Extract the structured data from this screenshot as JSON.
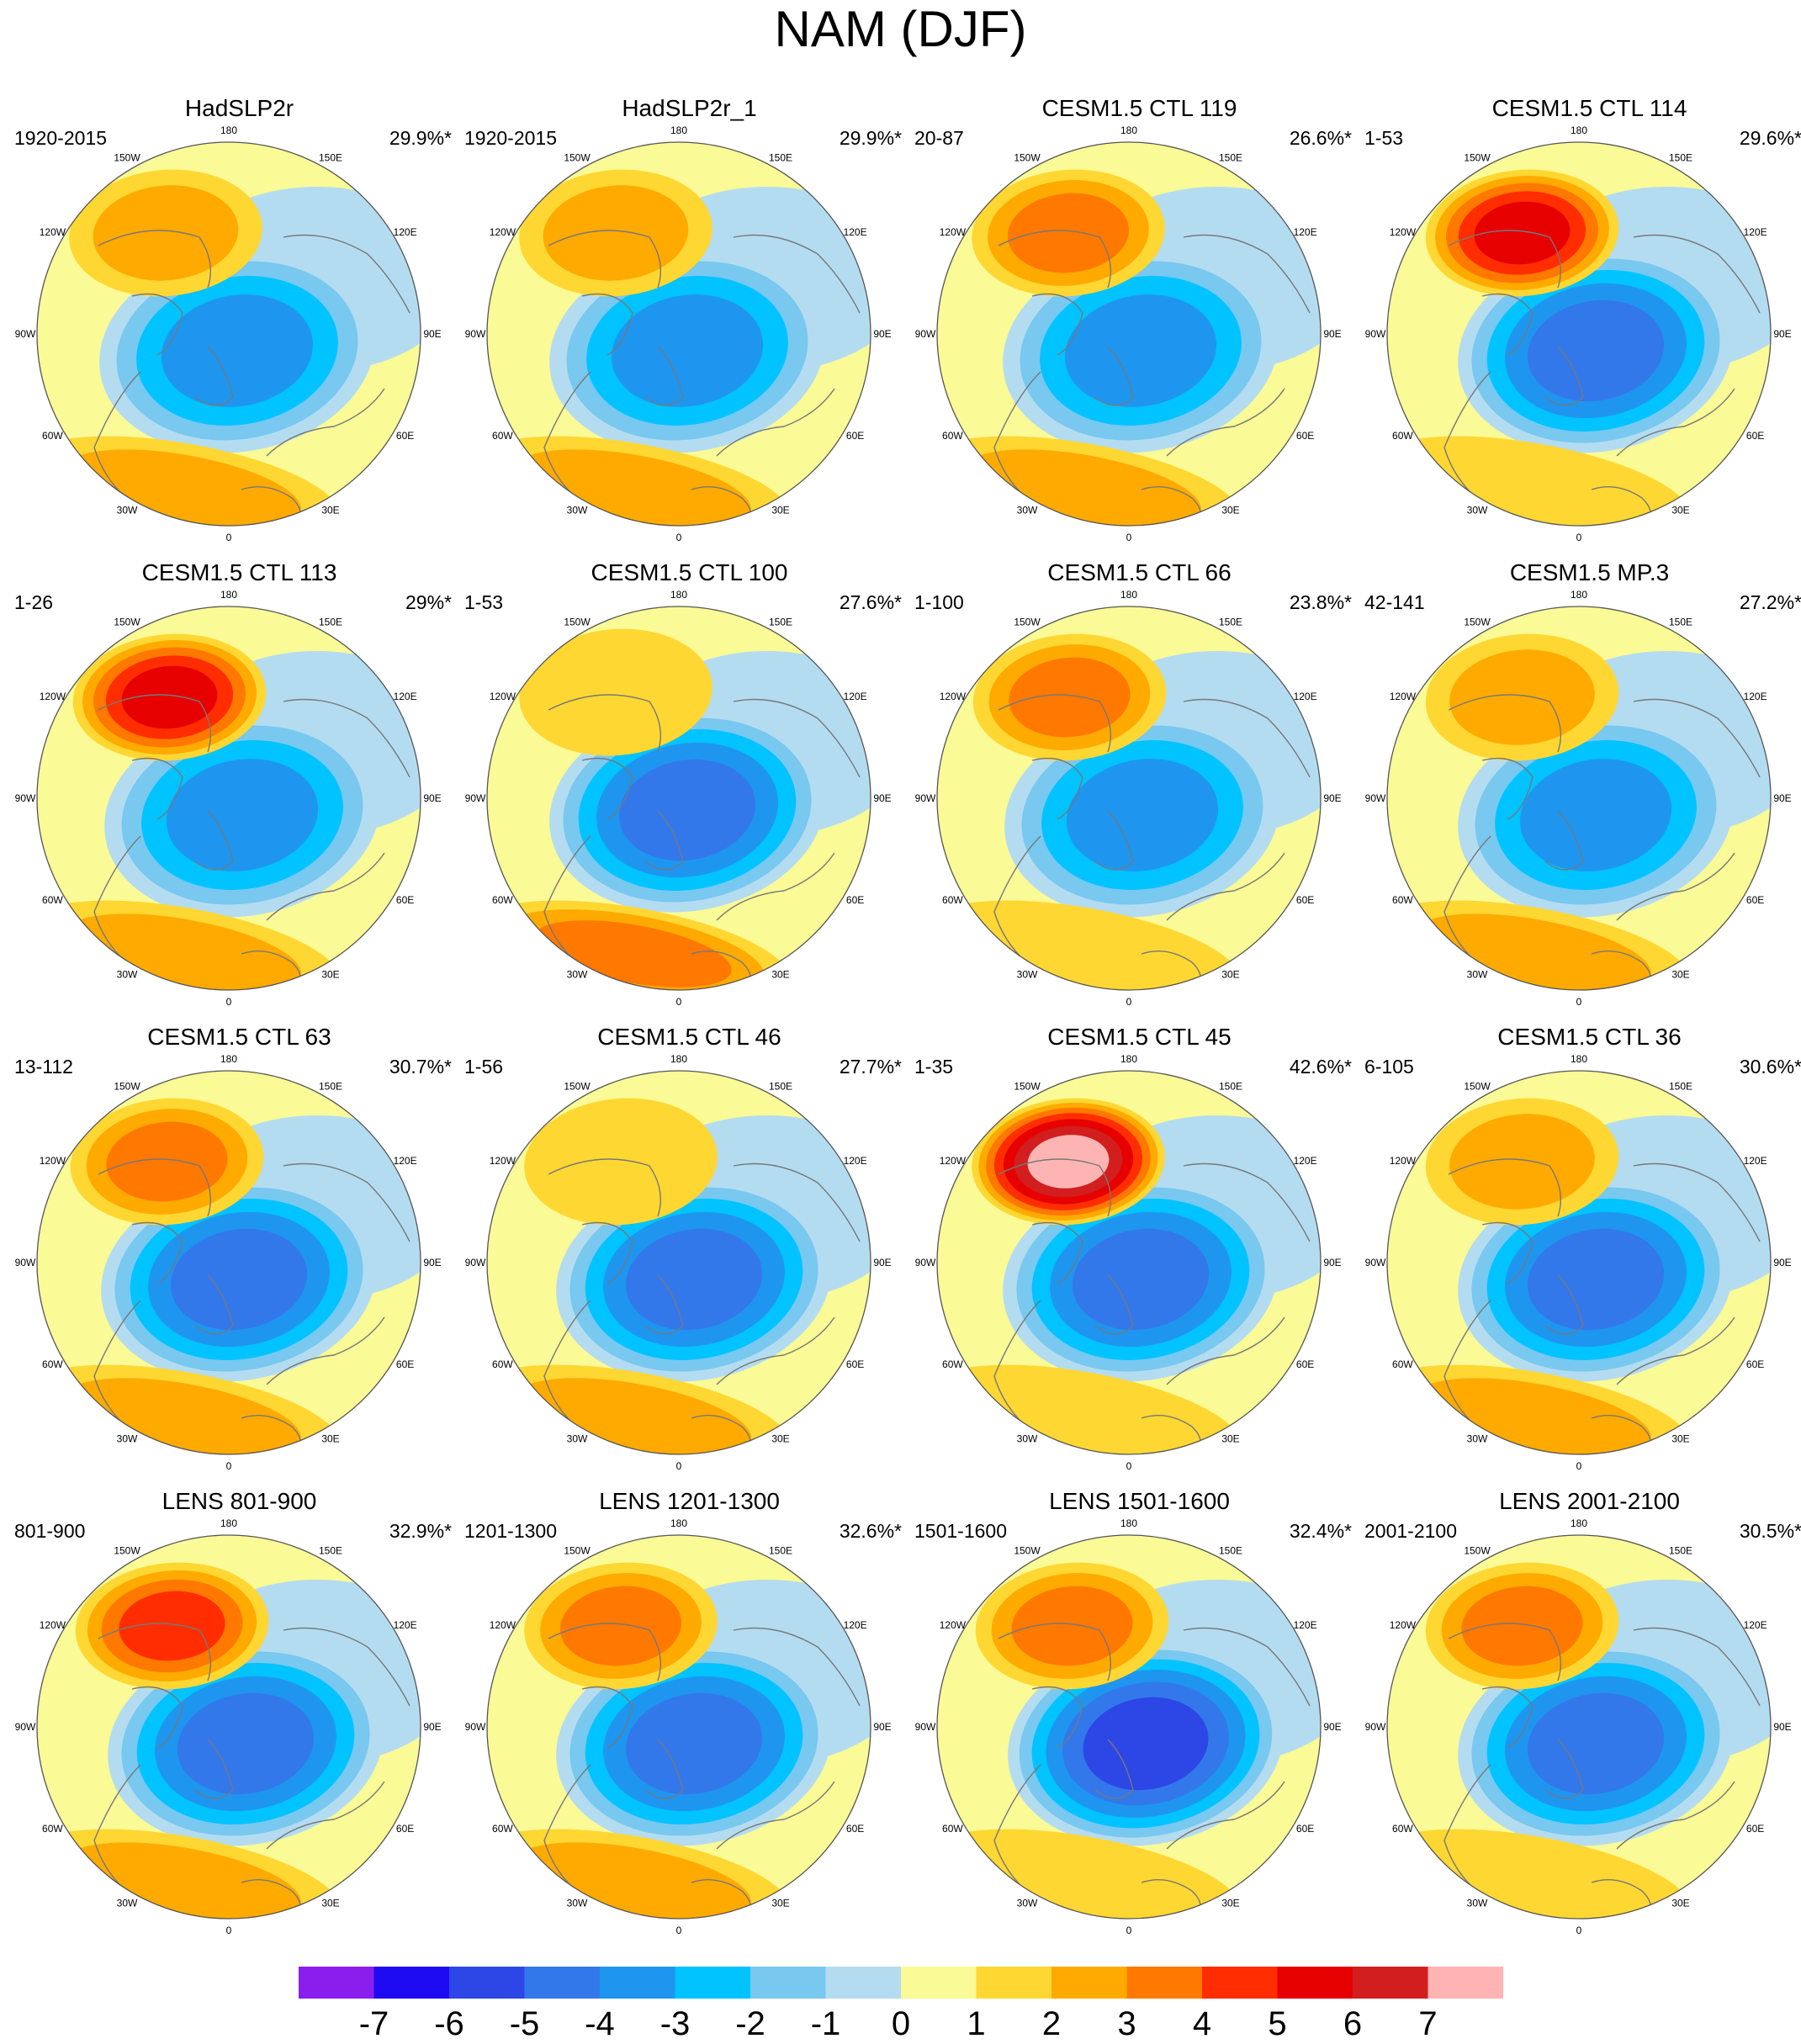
{
  "title": "NAM (DJF)",
  "longitude_labels": [
    "180",
    "150E",
    "120E",
    "90E",
    "60E",
    "30E",
    "0",
    "30W",
    "60W",
    "90W",
    "120W",
    "150W"
  ],
  "panels": [
    {
      "title": "HadSLP2r",
      "period": "1920-2015",
      "variance": "29.9%*",
      "low": 4.0,
      "high_pac": 2.0,
      "high_atl": 2.0,
      "shift": 0.0,
      "pac_lift": 0.0
    },
    {
      "title": "HadSLP2r_1",
      "period": "1920-2015",
      "variance": "29.9%*",
      "low": 4.0,
      "high_pac": 2.0,
      "high_atl": 2.0,
      "shift": 0.0,
      "pac_lift": 0.0
    },
    {
      "title": "CESM1.5 CTL 119",
      "period": "20-87",
      "variance": "26.6%*",
      "low": 4.0,
      "high_pac": 3.0,
      "high_atl": 2.0,
      "shift": 0.1,
      "pac_lift": 0.0
    },
    {
      "title": "CESM1.5 CTL 114",
      "period": "1-53",
      "variance": "29.6%*",
      "low": 5.0,
      "high_pac": 5.0,
      "high_atl": 1.5,
      "shift": 0.25,
      "pac_lift": 0.0
    },
    {
      "title": "CESM1.5 CTL 113",
      "period": "1-26",
      "variance": "29%*",
      "low": 4.0,
      "high_pac": 5.0,
      "high_atl": 2.0,
      "shift": 0.15,
      "pac_lift": 0.0
    },
    {
      "title": "CESM1.5 CTL 100",
      "period": "1-53",
      "variance": "27.6%*",
      "low": 5.0,
      "high_pac": 1.5,
      "high_atl": 3.0,
      "shift": 0.0,
      "pac_lift": 0.3
    },
    {
      "title": "CESM1.5 CTL 66",
      "period": "1-100",
      "variance": "23.8%*",
      "low": 4.0,
      "high_pac": 3.0,
      "high_atl": 1.5,
      "shift": 0.15,
      "pac_lift": 0.0
    },
    {
      "title": "CESM1.5 MP.3",
      "period": "42-141",
      "variance": "27.2%*",
      "low": 4.0,
      "high_pac": 2.0,
      "high_atl": 2.0,
      "shift": 0.25,
      "pac_lift": 0.0
    },
    {
      "title": "CESM1.5 CTL 63",
      "period": "13-112",
      "variance": "30.7%*",
      "low": 5.0,
      "high_pac": 3.0,
      "high_atl": 2.0,
      "shift": 0.05,
      "pac_lift": 0.0
    },
    {
      "title": "CESM1.5 CTL 46",
      "period": "1-56",
      "variance": "27.7%*",
      "low": 5.0,
      "high_pac": 1.0,
      "high_atl": 2.0,
      "shift": 0.2,
      "pac_lift": 0.0
    },
    {
      "title": "CESM1.5 CTL 45",
      "period": "1-35",
      "variance": "42.6%*",
      "low": 5.0,
      "high_pac": 7.0,
      "high_atl": 1.5,
      "shift": 0.1,
      "pac_lift": 0.0
    },
    {
      "title": "CESM1.5 CTL 36",
      "period": "6-105",
      "variance": "30.6%*",
      "low": 5.0,
      "high_pac": 2.0,
      "high_atl": 2.0,
      "shift": 0.25,
      "pac_lift": 0.0
    },
    {
      "title": "LENS 801-900",
      "period": "801-900",
      "variance": "32.9%*",
      "low": 5.0,
      "high_pac": 4.0,
      "high_atl": 2.0,
      "shift": 0.25,
      "pac_lift": 0.0
    },
    {
      "title": "LENS 1201-1300",
      "period": "1201-1300",
      "variance": "32.6%*",
      "low": 5.0,
      "high_pac": 3.0,
      "high_atl": 2.0,
      "shift": 0.2,
      "pac_lift": 0.0
    },
    {
      "title": "LENS 1501-1600",
      "period": "1501-1600",
      "variance": "32.4%*",
      "low": 6.0,
      "high_pac": 3.0,
      "high_atl": 1.5,
      "shift": 0.25,
      "pac_lift": 0.0
    },
    {
      "title": "LENS 2001-2100",
      "period": "2001-2100",
      "variance": "30.5%*",
      "low": 5.0,
      "high_pac": 3.0,
      "high_atl": 1.5,
      "shift": 0.25,
      "pac_lift": 0.0
    }
  ],
  "colorbar": {
    "labels": [
      "-7",
      "-6",
      "-5",
      "-4",
      "-3",
      "-2",
      "-1",
      "0",
      "1",
      "2",
      "3",
      "4",
      "5",
      "6",
      "7"
    ],
    "colors": [
      "#8a1eed",
      "#1e0af0",
      "#2d46e6",
      "#3278eb",
      "#1e96f0",
      "#00c3ff",
      "#78c8f0",
      "#b4dcf0",
      "#fafa96",
      "#ffd732",
      "#ffaa00",
      "#ff7800",
      "#ff2d00",
      "#e60000",
      "#d21e1e",
      "#ffb4b4"
    ]
  },
  "map_colors": {
    "land_outline": "#787878",
    "boundary": "#555555"
  }
}
